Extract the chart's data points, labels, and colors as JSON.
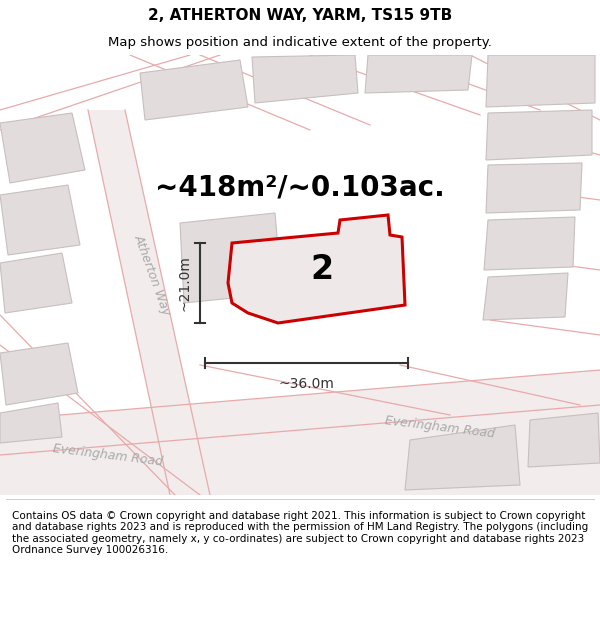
{
  "title": "2, ATHERTON WAY, YARM, TS15 9TB",
  "subtitle": "Map shows position and indicative extent of the property.",
  "area_label": "~418m²/~0.103ac.",
  "property_number": "2",
  "width_label": "~36.0m",
  "height_label": "~21.0m",
  "footer": "Contains OS data © Crown copyright and database right 2021. This information is subject to Crown copyright and database rights 2023 and is reproduced with the permission of HM Land Registry. The polygons (including the associated geometry, namely x, y co-ordinates) are subject to Crown copyright and database rights 2023 Ordnance Survey 100026316.",
  "bg_color": "#f5f0f0",
  "road_fill": "#f8f4f4",
  "block_color": "#e2dcdc",
  "block_edge": "#c8bfbf",
  "road_line_color": "#e8aaaa",
  "property_fill": "#eee8e8",
  "property_edge": "#cc0000",
  "road_label_color": "#aaaaaa",
  "dim_color": "#333333",
  "title_fontsize": 11,
  "subtitle_fontsize": 9.5,
  "area_fontsize": 20,
  "number_fontsize": 24,
  "dim_fontsize": 10,
  "footer_fontsize": 7.5,
  "road_label_fontsize": 9
}
